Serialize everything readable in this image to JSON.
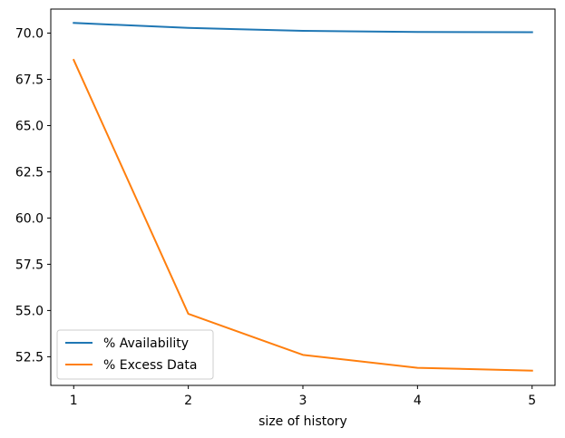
{
  "chart_data": {
    "type": "line",
    "title": "",
    "xlabel": "size of history",
    "ylabel": "",
    "x": [
      1,
      2,
      3,
      4,
      5
    ],
    "xlim": [
      0.8,
      5.2
    ],
    "ylim": [
      50.95,
      71.3
    ],
    "xticks": [
      1,
      2,
      3,
      4,
      5
    ],
    "xtick_labels": [
      "1",
      "2",
      "3",
      "4",
      "5"
    ],
    "yticks": [
      52.5,
      55.0,
      57.5,
      60.0,
      62.5,
      65.0,
      67.5,
      70.0
    ],
    "ytick_labels": [
      "52.5",
      "55.0",
      "57.5",
      "60.0",
      "62.5",
      "65.0",
      "67.5",
      "70.0"
    ],
    "grid": false,
    "legend_position": "lower-left",
    "series": [
      {
        "name": "% Availability",
        "color": "#1f77b4",
        "values": [
          70.55,
          70.28,
          70.12,
          70.06,
          70.05
        ]
      },
      {
        "name": "% Excess Data",
        "color": "#ff7f0e",
        "values": [
          68.55,
          54.82,
          52.6,
          51.9,
          51.75
        ]
      }
    ]
  }
}
